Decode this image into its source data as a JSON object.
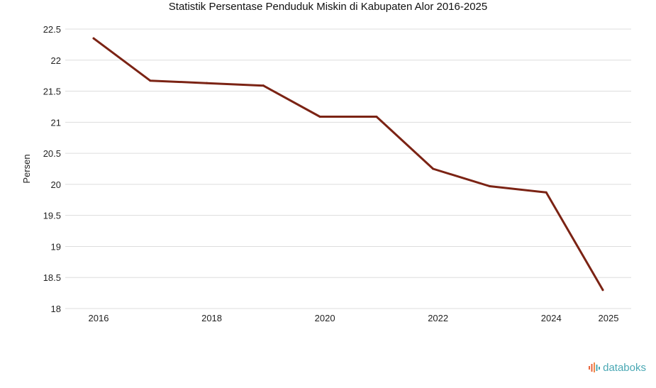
{
  "chart_data": {
    "type": "line",
    "title": "Statistik Persentase Penduduk Miskin di Kabupaten Alor 2016-2025",
    "xlabel": "",
    "ylabel": "Persen",
    "x": [
      2016,
      2017,
      2018,
      2019,
      2020,
      2021,
      2022,
      2023,
      2024,
      2025
    ],
    "xticks": [
      "2016",
      "2018",
      "2020",
      "2022",
      "2024",
      "2025"
    ],
    "series": [
      {
        "name": "Persentase Penduduk Miskin",
        "values": [
          22.35,
          21.67,
          21.63,
          21.59,
          21.09,
          21.09,
          20.25,
          19.97,
          19.87,
          18.3
        ]
      }
    ],
    "ylim": [
      18,
      22.5
    ],
    "yticks": [
      "22.5",
      "22",
      "21.5",
      "21",
      "20.5",
      "20",
      "19.5",
      "19",
      "18.5",
      "18"
    ],
    "grid": true,
    "line_color": "#7b2314"
  },
  "brand": {
    "name": "databoks",
    "color": "#4aa8b4"
  }
}
